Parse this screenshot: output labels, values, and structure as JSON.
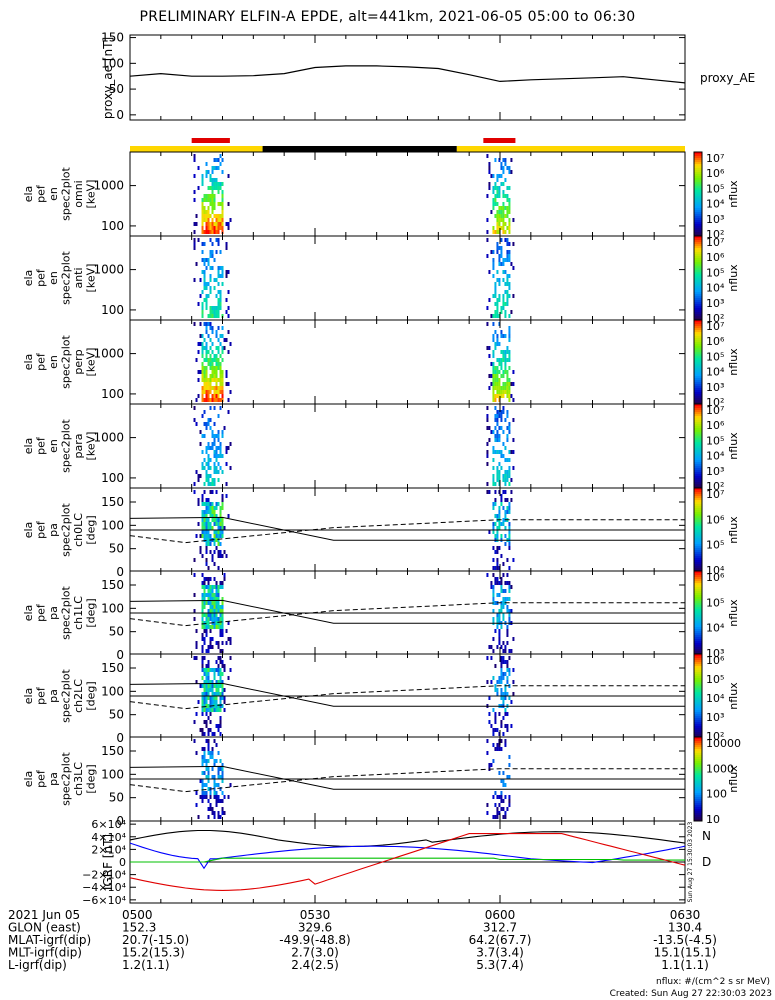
{
  "title": "PRELIMINARY ELFIN-A EPDE, alt=441km, 2021-06-05 05:00 to 06:30",
  "colors": {
    "science_bar": "#ffd700",
    "sun_bar": "#000000",
    "eclipse_marker": "#e00000",
    "bx": "#0000ff",
    "by": "#00c000",
    "bz": "#e00000",
    "bt": "#000000"
  },
  "chart_data": [
    {
      "id": "proxy_ae",
      "type": "line",
      "ylabel": "proxy_ae [nT]",
      "legend": "proxy_AE",
      "ylim": [
        -10,
        155
      ],
      "yticks": [
        "150",
        "100",
        "50",
        "0"
      ],
      "x_minutes": [
        0,
        5,
        10,
        15,
        20,
        25,
        30,
        35,
        40,
        45,
        50,
        55,
        60,
        65,
        70,
        75,
        80,
        85,
        90
      ],
      "values": [
        75,
        80,
        75,
        75,
        76,
        80,
        92,
        95,
        95,
        93,
        90,
        78,
        65,
        68,
        70,
        72,
        74,
        68,
        62
      ]
    },
    {
      "id": "en_omni",
      "type": "heatmap",
      "ylabel": [
        "ela",
        "pef",
        "en",
        "spec2plot",
        "omni",
        "[keV]"
      ],
      "yticks": [
        "1000",
        "100"
      ],
      "cbar": "nflux",
      "cbar_labels": [
        "10⁷",
        "10⁶",
        "10⁵",
        "10⁴",
        "10³",
        "10²"
      ]
    },
    {
      "id": "en_anti",
      "type": "heatmap",
      "ylabel": [
        "ela",
        "pef",
        "en",
        "spec2plot",
        "anti",
        "[keV]"
      ],
      "yticks": [
        "1000",
        "100"
      ],
      "cbar": "nflux",
      "cbar_labels": [
        "10⁷",
        "10⁶",
        "10⁵",
        "10⁴",
        "10³",
        "10²"
      ]
    },
    {
      "id": "en_perp",
      "type": "heatmap",
      "ylabel": [
        "ela",
        "pef",
        "en",
        "spec2plot",
        "perp",
        "[keV]"
      ],
      "yticks": [
        "1000",
        "100"
      ],
      "cbar": "nflux",
      "cbar_labels": [
        "10⁷",
        "10⁶",
        "10⁵",
        "10⁴",
        "10³",
        "10²"
      ]
    },
    {
      "id": "en_para",
      "type": "heatmap",
      "ylabel": [
        "ela",
        "pef",
        "en",
        "spec2plot",
        "para",
        "[keV]"
      ],
      "yticks": [
        "1000",
        "100"
      ],
      "cbar": "nflux",
      "cbar_labels": [
        "10⁷",
        "10⁶",
        "10⁵",
        "10⁴",
        "10³",
        "10²"
      ]
    },
    {
      "id": "pa_ch0",
      "type": "heatmap",
      "ylabel": [
        "ela",
        "pef",
        "pa",
        "spec2plot",
        "ch0LC",
        "[deg]"
      ],
      "yticks": [
        "150",
        "100",
        "50",
        "0"
      ],
      "cbar": "nflux",
      "cbar_labels": [
        "10⁷",
        "10⁶",
        "10⁵",
        "10⁴"
      ]
    },
    {
      "id": "pa_ch1",
      "type": "heatmap",
      "ylabel": [
        "ela",
        "pef",
        "pa",
        "spec2plot",
        "ch1LC",
        "[deg]"
      ],
      "yticks": [
        "150",
        "100",
        "50",
        "0"
      ],
      "cbar": "nflux",
      "cbar_labels": [
        "10⁶",
        "10⁵",
        "10⁴",
        "10³"
      ]
    },
    {
      "id": "pa_ch2",
      "type": "heatmap",
      "ylabel": [
        "ela",
        "pef",
        "pa",
        "spec2plot",
        "ch2LC",
        "[deg]"
      ],
      "yticks": [
        "150",
        "100",
        "50",
        "0"
      ],
      "cbar": "nflux",
      "cbar_labels": [
        "10⁶",
        "10⁵",
        "10⁴",
        "10³",
        "10²"
      ]
    },
    {
      "id": "pa_ch3",
      "type": "heatmap",
      "ylabel": [
        "ela",
        "pef",
        "pa",
        "spec2plot",
        "ch3LC",
        "[deg]"
      ],
      "yticks": [
        "150",
        "100",
        "50",
        "0"
      ],
      "cbar": "nflux",
      "cbar_labels": [
        "10000",
        "1000",
        "100",
        "10"
      ]
    },
    {
      "id": "igrf",
      "type": "line",
      "ylabel": "IGRF [nT]",
      "ylim": [
        -65000,
        65000
      ],
      "yticks": [
        "6×10⁴",
        "4×10⁴",
        "2×10⁴",
        "0",
        "−2×10⁴",
        "−4×10⁴",
        "−6×10⁴"
      ],
      "legend": [
        "N",
        "D"
      ],
      "stamp": "Sun Aug 27 15:30:03 2023"
    }
  ],
  "ephemeris": {
    "rows": [
      {
        "label": "2021 Jun 05",
        "values": [
          "0500",
          "0530",
          "0600",
          "0630"
        ]
      },
      {
        "label": "GLON (east)",
        "values": [
          "152.3",
          "329.6",
          "312.7",
          "130.4"
        ]
      },
      {
        "label": "MLAT-igrf(dip)",
        "values": [
          "20.7(-15.0)",
          "-49.9(-48.8)",
          "64.2(67.7)",
          "-13.5(-4.5)"
        ]
      },
      {
        "label": "MLT-igrf(dip)",
        "values": [
          "15.2(15.3)",
          "2.7(3.0)",
          "3.7(3.4)",
          "15.1(15.1)"
        ]
      },
      {
        "label": "L-igrf(dip)",
        "values": [
          "1.2(1.1)",
          "2.4(2.5)",
          "5.3(7.4)",
          "1.1(1.1)"
        ]
      }
    ]
  },
  "footer": {
    "units": "nflux: #/(cm^2 s sr MeV)",
    "created": "Created: Sun Aug 27 22:30:03 2023"
  }
}
